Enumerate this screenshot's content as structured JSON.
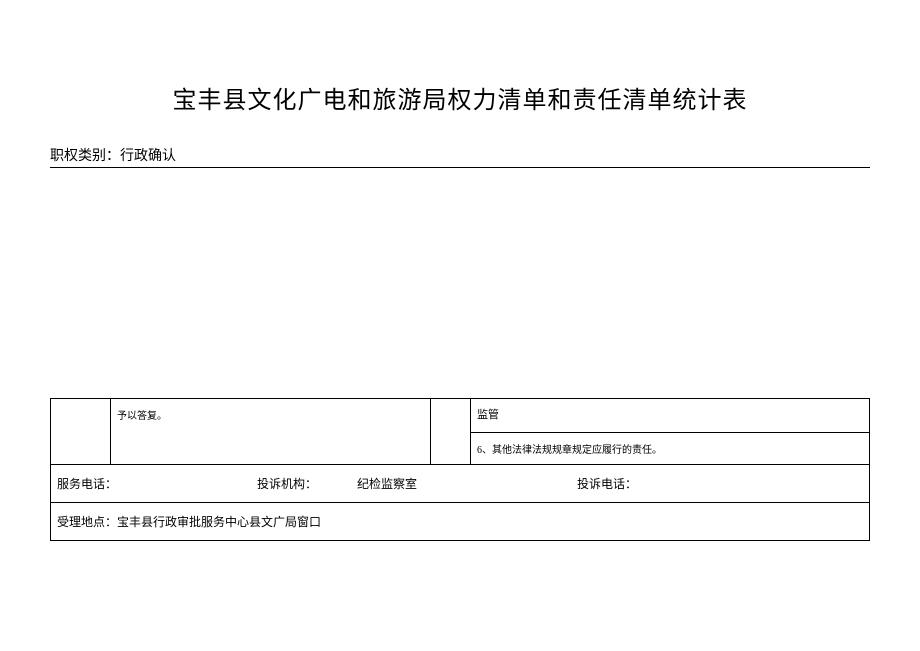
{
  "title": "宝丰县文化广电和旅游局权力清单和责任清单统计表",
  "category": {
    "label": "职权类别：",
    "value": "行政确认"
  },
  "table": {
    "row1": {
      "reply_text": "予以答复。",
      "supervision": "监管",
      "responsibility": "6、其他法律法规规章规定应履行的责任。"
    },
    "info_row1": {
      "phone_label": "服务电话：",
      "org_label": "投诉机构：",
      "org_value": "纪检监察室",
      "complaint_label": "投诉电话："
    },
    "info_row2": {
      "location_label": "受理地点：",
      "location_value": "宝丰县行政审批服务中心县文广局窗口"
    }
  }
}
